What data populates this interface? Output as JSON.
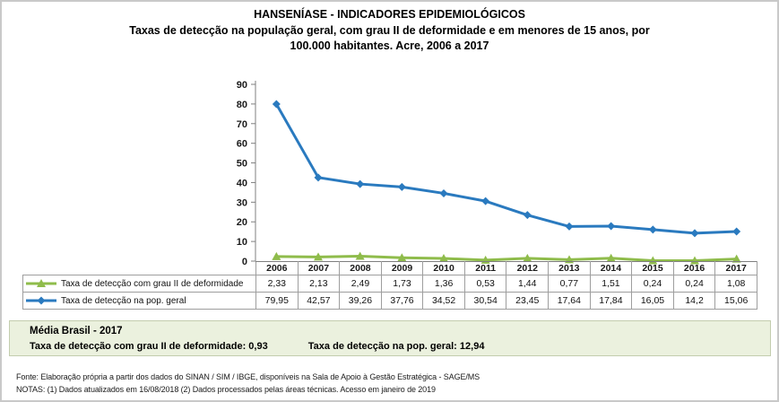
{
  "header": {
    "title": "HANSENÍASE - INDICADORES EPIDEMIOLÓGICOS",
    "subtitle_lines": [
      "Taxas de detecção na população geral, com grau II de deformidade e em menores de 15 anos, por",
      "100.000 habitantes. Acre, 2006 a 2017"
    ]
  },
  "chart_data": {
    "type": "line",
    "categories": [
      "2006",
      "2007",
      "2008",
      "2009",
      "2010",
      "2011",
      "2012",
      "2013",
      "2014",
      "2015",
      "2016",
      "2017"
    ],
    "series": [
      {
        "name": "Taxa de detecção com grau II de deformidade",
        "marker": "triangle",
        "color": "#8FBC4B",
        "values": [
          2.33,
          2.13,
          2.49,
          1.73,
          1.36,
          0.53,
          1.44,
          0.77,
          1.51,
          0.24,
          0.24,
          1.08
        ]
      },
      {
        "name": "Taxa de detecção na pop. geral",
        "marker": "diamond",
        "color": "#2A7ABF",
        "values": [
          79.95,
          42.57,
          39.26,
          37.76,
          34.52,
          30.54,
          23.45,
          17.64,
          17.84,
          16.05,
          14.2,
          15.06
        ]
      }
    ],
    "title": "Taxas de detecção na população geral, com grau II de deformidade e em menores de 15 anos, por 100.000 habitantes. Acre, 2006 a 2017",
    "xlabel": "",
    "ylabel": "",
    "ylim": [
      0,
      90
    ],
    "ytick_interval": 10,
    "yticks": [
      0,
      10,
      20,
      30,
      40,
      50,
      60,
      70,
      80,
      90
    ],
    "grid": false,
    "legend_position": "data-table-left"
  },
  "summary_box": {
    "line1": "Média Brasil - 2017",
    "item1": "Taxa de detecção com grau II de deformidade: 0,93",
    "item2": "Taxa de detecção na pop. geral: 12,94"
  },
  "footer": {
    "line1": "Fonte:  Elaboração própria a partir dos dados do  SINAN / SIM / IBGE, disponíveis na Sala de Apoio à Gestão Estratégica -  SAGE/MS",
    "line2": "NOTAS: (1) Dados atualizados em 16/08/2018 (2) Dados processados pelas áreas técnicas. Acesso em janeiro de 2019"
  }
}
